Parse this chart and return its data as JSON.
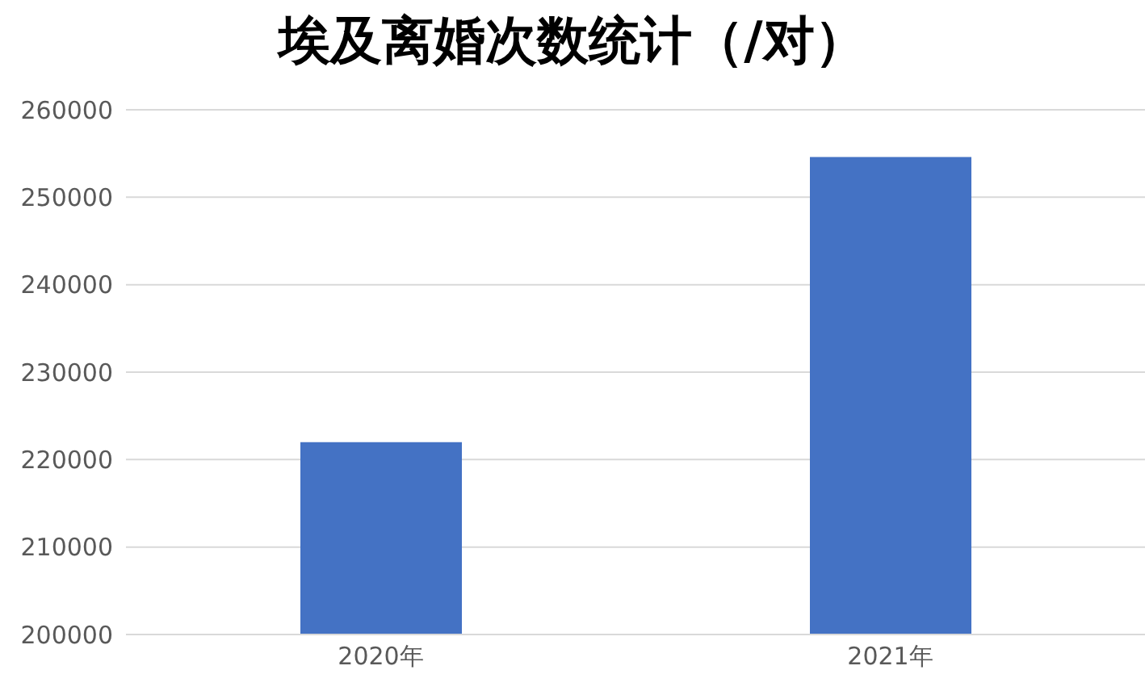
{
  "chart_data": {
    "type": "bar",
    "title": "埃及离婚次数统计（/对）",
    "categories": [
      "2020年",
      "2021年"
    ],
    "values": [
      222000,
      254600
    ],
    "color": "#4472c4",
    "ylim": [
      200000,
      260000
    ],
    "yticks": [
      200000,
      210000,
      220000,
      230000,
      240000,
      250000,
      260000
    ],
    "grid": "y"
  }
}
